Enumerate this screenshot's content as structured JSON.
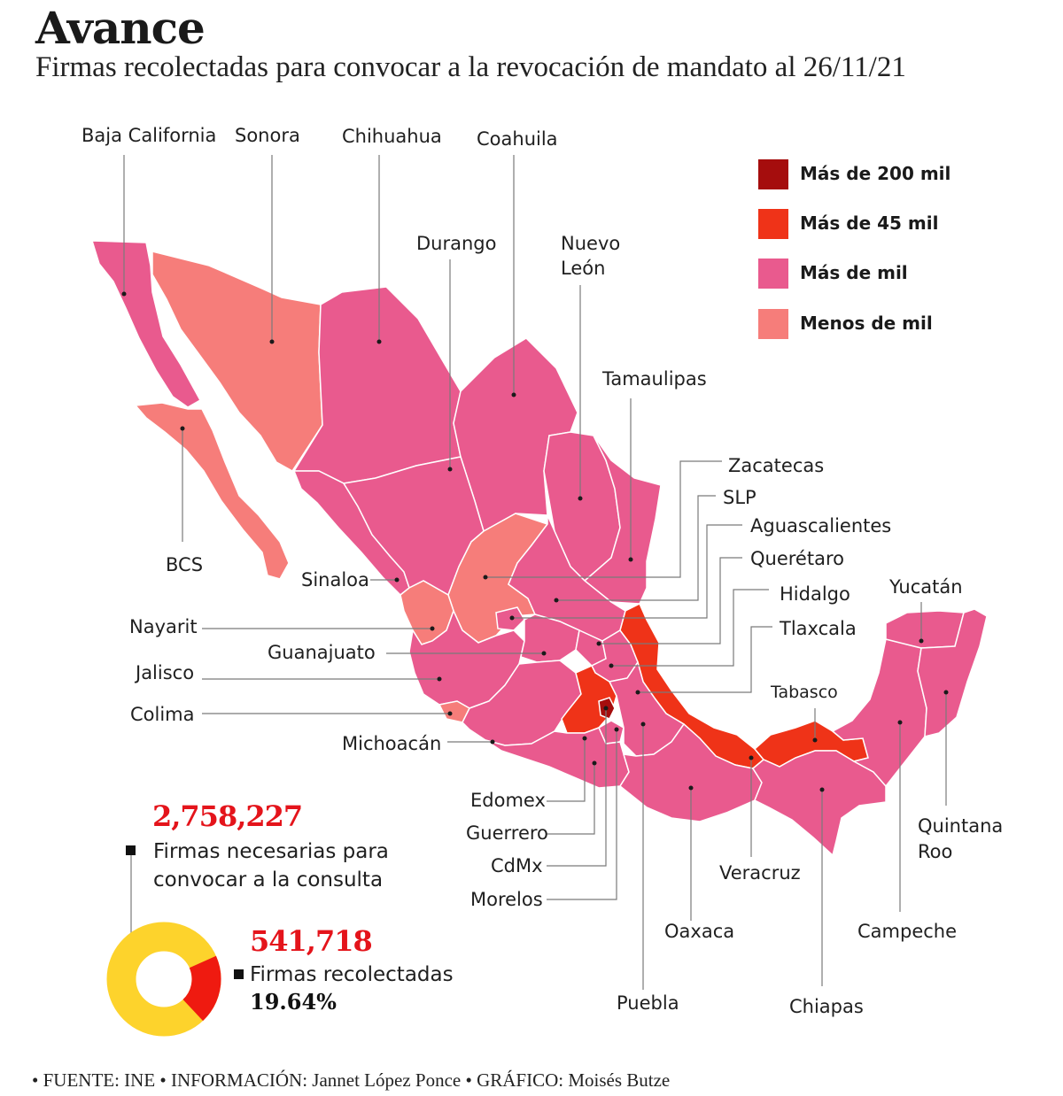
{
  "header": {
    "title": "Avance",
    "subtitle": "Firmas recolectadas para convocar a la revocación de mandato al 26/11/21"
  },
  "legend": [
    {
      "label": "Más de 200 mil",
      "color": "#a50d0d"
    },
    {
      "label": "Más de 45 mil",
      "color": "#ef3318"
    },
    {
      "label": "Más de mil",
      "color": "#e95a8e"
    },
    {
      "label": "Menos de mil",
      "color": "#f67d7a"
    }
  ],
  "states": {
    "baja_california": "Baja California",
    "sonora": "Sonora",
    "chihuahua": "Chihuahua",
    "coahuila": "Coahuila",
    "durango": "Durango",
    "nuevo_leon_1": "Nuevo",
    "nuevo_leon_2": "León",
    "tamaulipas": "Tamaulipas",
    "zacatecas": "Zacatecas",
    "slp": "SLP",
    "aguascalientes": "Aguascalientes",
    "queretaro": "Querétaro",
    "hidalgo": "Hidalgo",
    "tlaxcala": "Tlaxcala",
    "yucatan": "Yucatán",
    "tabasco": "Tabasco",
    "bcs": "BCS",
    "sinaloa": "Sinaloa",
    "nayarit": "Nayarit",
    "guanajuato": "Guanajuato",
    "jalisco": "Jalisco",
    "colima": "Colima",
    "michoacan": "Michoacán",
    "edomex": "Edomex",
    "guerrero": "Guerrero",
    "cdmx": "CdMx",
    "morelos": "Morelos",
    "oaxaca": "Oaxaca",
    "puebla": "Puebla",
    "veracruz": "Veracruz",
    "chiapas": "Chiapas",
    "campeche": "Campeche",
    "quintana_roo_1": "Quintana",
    "quintana_roo_2": "Roo"
  },
  "stats": {
    "required_value": "2,758,227",
    "required_line1": "Firmas necesarias para",
    "required_line2": "convocar a la consulta",
    "collected_value": "541,718",
    "collected_label": "Firmas recolectadas",
    "collected_pct": "19.64%",
    "collected_fraction": 0.1964
  },
  "footer": {
    "text": "• FUENTE: INE • INFORMACIÓN: Jannet López Ponce • GRÁFICO: Moisés Butze"
  }
}
